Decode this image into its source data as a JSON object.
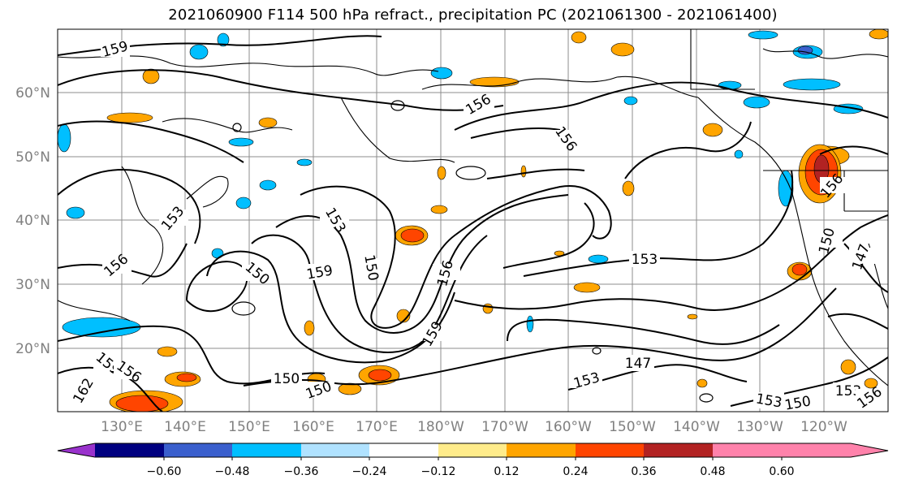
{
  "title": "2021060900 F114 500 hPa refract., precipitation PC (2021061300 - 2021061400)",
  "lat_labels": [
    "60°N",
    "50°N",
    "40°N",
    "30°N",
    "20°N"
  ],
  "lon_labels": [
    "130°E",
    "140°E",
    "150°E",
    "160°E",
    "170°E",
    "180°W",
    "170°W",
    "160°W",
    "150°W",
    "140°W",
    "130°W",
    "120°W"
  ],
  "contour_labels": [
    "159",
    "156",
    "156",
    "153",
    "156",
    "150",
    "159",
    "150",
    "153",
    "156",
    "159",
    "153",
    "147",
    "153",
    "150",
    "150",
    "159",
    "156",
    "162",
    "153",
    "150",
    "153",
    "156",
    "150",
    "147",
    "156"
  ],
  "colorbar": {
    "tick_labels": [
      "−0.60",
      "−0.48",
      "−0.36",
      "−0.24",
      "−0.12",
      "0.12",
      "0.24",
      "0.36",
      "0.48",
      "0.60"
    ],
    "colors": [
      "#9932cc",
      "#000080",
      "#3a5fcd",
      "#00bfff",
      "#b0e2ff",
      "#ffffff",
      "#ffec8b",
      "#ffa500",
      "#ff4500",
      "#b22222",
      "#ff82ab"
    ]
  }
}
